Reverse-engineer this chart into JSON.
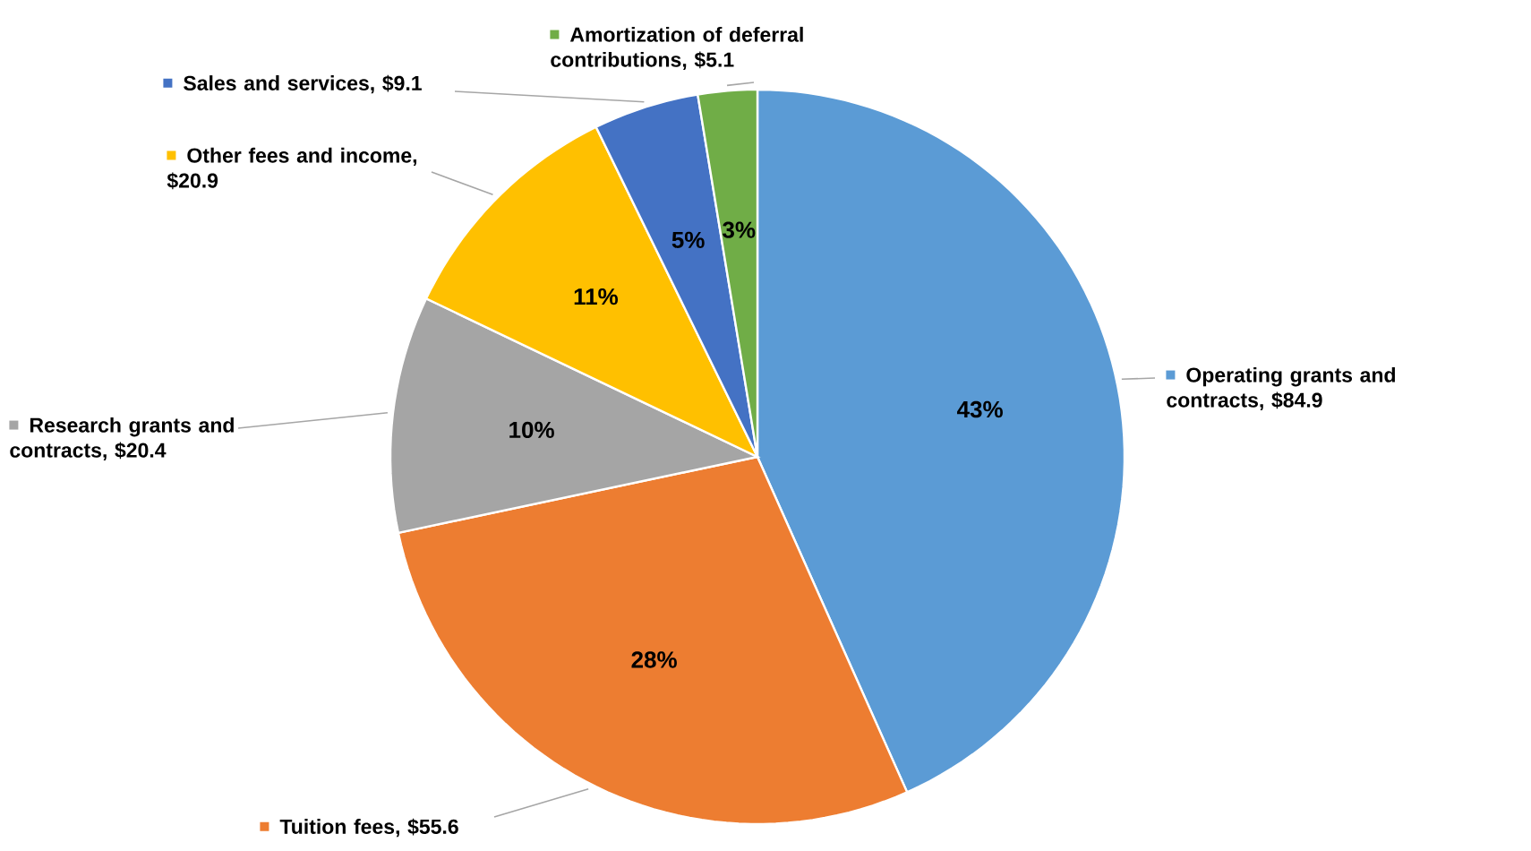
{
  "chart_data": {
    "type": "pie",
    "categories": [
      "Operating grants and contracts, $84.9",
      "Tuition fees, $55.6",
      "Research grants and contracts, $20.4",
      "Other fees and income, $20.9",
      "Sales and services, $9.1",
      "Amortization of deferral contributions, $5.1"
    ],
    "values": [
      84.9,
      55.6,
      20.4,
      20.9,
      9.1,
      5.1
    ],
    "colors": [
      "#5b9bd5",
      "#ed7d31",
      "#a5a5a5",
      "#ffc000",
      "#4472c4",
      "#70ad47"
    ],
    "annotations": [
      "43%",
      "28%",
      "10%",
      "11%",
      "5%",
      "3%"
    ],
    "legend": true
  }
}
